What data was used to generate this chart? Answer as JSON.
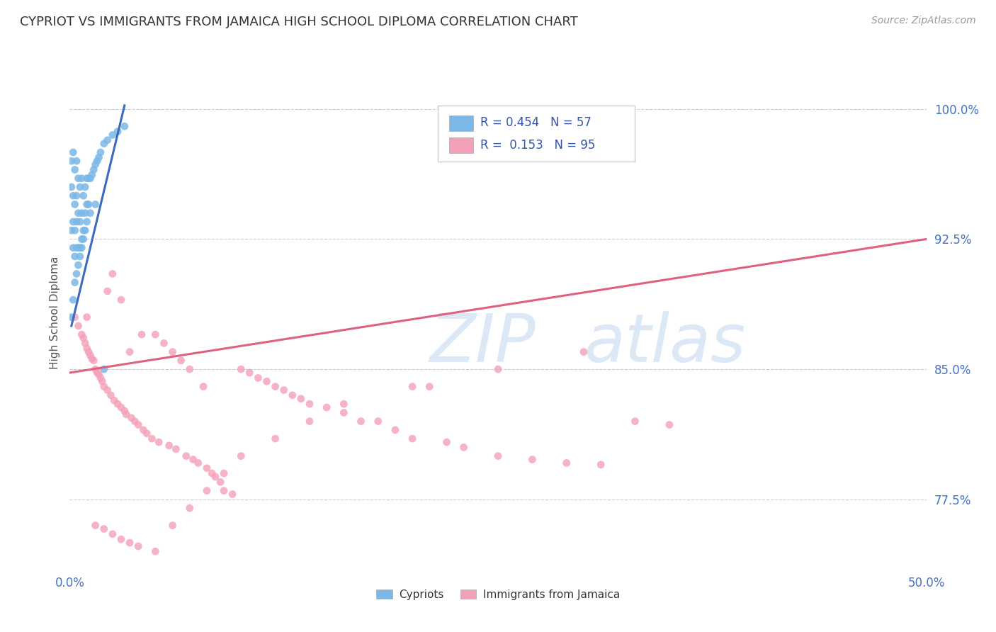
{
  "title": "CYPRIOT VS IMMIGRANTS FROM JAMAICA HIGH SCHOOL DIPLOMA CORRELATION CHART",
  "source_text": "Source: ZipAtlas.com",
  "ylabel": "High School Diploma",
  "xlim": [
    0.0,
    0.5
  ],
  "ylim": [
    0.735,
    1.03
  ],
  "xtick_labels": [
    "0.0%",
    "50.0%"
  ],
  "xtick_positions": [
    0.0,
    0.5
  ],
  "ytick_labels": [
    "77.5%",
    "85.0%",
    "92.5%",
    "100.0%"
  ],
  "ytick_positions": [
    0.775,
    0.85,
    0.925,
    1.0
  ],
  "blue_color": "#7ab8e8",
  "pink_color": "#f4a0b8",
  "blue_line_color": "#3a6bbf",
  "pink_line_color": "#e06080",
  "legend_r_blue": "R = 0.454",
  "legend_n_blue": "N = 57",
  "legend_r_pink": "R =  0.153",
  "legend_n_pink": "N = 95",
  "legend_label_blue": "Cypriots",
  "legend_label_pink": "Immigrants from Jamaica",
  "title_color": "#333333",
  "title_fontsize": 13,
  "axis_label_color": "#555555",
  "tick_color": "#4472c4",
  "source_color": "#999999",
  "background_color": "#ffffff",
  "grid_color": "#cccccc",
  "blue_scatter_x": [
    0.001,
    0.001,
    0.001,
    0.002,
    0.002,
    0.002,
    0.002,
    0.003,
    0.003,
    0.003,
    0.003,
    0.004,
    0.004,
    0.004,
    0.004,
    0.005,
    0.005,
    0.005,
    0.006,
    0.006,
    0.006,
    0.007,
    0.007,
    0.007,
    0.008,
    0.008,
    0.009,
    0.009,
    0.01,
    0.01,
    0.011,
    0.011,
    0.012,
    0.013,
    0.014,
    0.015,
    0.016,
    0.017,
    0.018,
    0.02,
    0.022,
    0.025,
    0.028,
    0.032,
    0.001,
    0.002,
    0.003,
    0.004,
    0.005,
    0.006,
    0.007,
    0.008,
    0.009,
    0.01,
    0.012,
    0.015,
    0.02
  ],
  "blue_scatter_y": [
    0.93,
    0.955,
    0.97,
    0.92,
    0.935,
    0.95,
    0.975,
    0.915,
    0.93,
    0.945,
    0.965,
    0.92,
    0.935,
    0.95,
    0.97,
    0.92,
    0.94,
    0.96,
    0.92,
    0.935,
    0.955,
    0.925,
    0.94,
    0.96,
    0.93,
    0.95,
    0.94,
    0.955,
    0.945,
    0.96,
    0.945,
    0.96,
    0.96,
    0.962,
    0.965,
    0.968,
    0.97,
    0.972,
    0.975,
    0.98,
    0.982,
    0.985,
    0.987,
    0.99,
    0.88,
    0.89,
    0.9,
    0.905,
    0.91,
    0.915,
    0.92,
    0.925,
    0.93,
    0.935,
    0.94,
    0.945,
    0.85
  ],
  "pink_scatter_x": [
    0.003,
    0.005,
    0.007,
    0.008,
    0.009,
    0.01,
    0.011,
    0.012,
    0.013,
    0.014,
    0.015,
    0.016,
    0.017,
    0.018,
    0.019,
    0.02,
    0.022,
    0.022,
    0.024,
    0.025,
    0.026,
    0.028,
    0.03,
    0.03,
    0.032,
    0.033,
    0.035,
    0.036,
    0.038,
    0.04,
    0.042,
    0.043,
    0.045,
    0.048,
    0.05,
    0.052,
    0.055,
    0.058,
    0.06,
    0.062,
    0.065,
    0.068,
    0.07,
    0.072,
    0.075,
    0.078,
    0.08,
    0.083,
    0.085,
    0.088,
    0.09,
    0.095,
    0.1,
    0.105,
    0.11,
    0.115,
    0.12,
    0.125,
    0.13,
    0.135,
    0.14,
    0.15,
    0.16,
    0.17,
    0.18,
    0.19,
    0.2,
    0.21,
    0.22,
    0.23,
    0.25,
    0.27,
    0.29,
    0.31,
    0.33,
    0.35,
    0.01,
    0.015,
    0.02,
    0.025,
    0.03,
    0.035,
    0.04,
    0.05,
    0.06,
    0.07,
    0.08,
    0.09,
    0.1,
    0.12,
    0.14,
    0.16,
    0.2,
    0.25,
    0.3
  ],
  "pink_scatter_y": [
    0.88,
    0.875,
    0.87,
    0.868,
    0.865,
    0.862,
    0.86,
    0.858,
    0.856,
    0.855,
    0.85,
    0.848,
    0.847,
    0.845,
    0.843,
    0.84,
    0.895,
    0.838,
    0.835,
    0.905,
    0.832,
    0.83,
    0.828,
    0.89,
    0.826,
    0.824,
    0.86,
    0.822,
    0.82,
    0.818,
    0.87,
    0.815,
    0.813,
    0.81,
    0.87,
    0.808,
    0.865,
    0.806,
    0.86,
    0.804,
    0.855,
    0.8,
    0.85,
    0.798,
    0.796,
    0.84,
    0.793,
    0.79,
    0.788,
    0.785,
    0.78,
    0.778,
    0.85,
    0.848,
    0.845,
    0.843,
    0.84,
    0.838,
    0.835,
    0.833,
    0.83,
    0.828,
    0.825,
    0.82,
    0.82,
    0.815,
    0.81,
    0.84,
    0.808,
    0.805,
    0.8,
    0.798,
    0.796,
    0.795,
    0.82,
    0.818,
    0.88,
    0.76,
    0.758,
    0.755,
    0.752,
    0.75,
    0.748,
    0.745,
    0.76,
    0.77,
    0.78,
    0.79,
    0.8,
    0.81,
    0.82,
    0.83,
    0.84,
    0.85,
    0.86
  ]
}
